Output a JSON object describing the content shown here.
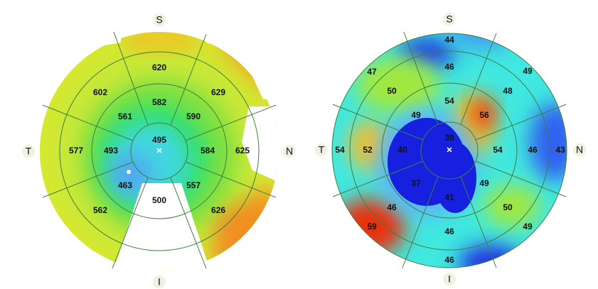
{
  "left_map": {
    "labels": {
      "superior": "S",
      "temporal": "T",
      "nasal": "N",
      "inferior": "I"
    },
    "values": [
      620,
      602,
      629,
      582,
      561,
      590,
      495,
      577,
      493,
      584,
      625,
      463,
      557,
      500,
      562,
      626
    ]
  },
  "right_map": {
    "labels": {
      "superior": "S",
      "temporal": "T",
      "nasal": "N",
      "inferior": "I"
    },
    "values": [
      44,
      47,
      49,
      46,
      50,
      48,
      54,
      56,
      49,
      39,
      54,
      52,
      40,
      54,
      46,
      43,
      37,
      41,
      49,
      46,
      50,
      59,
      49,
      46,
      46
    ]
  }
}
